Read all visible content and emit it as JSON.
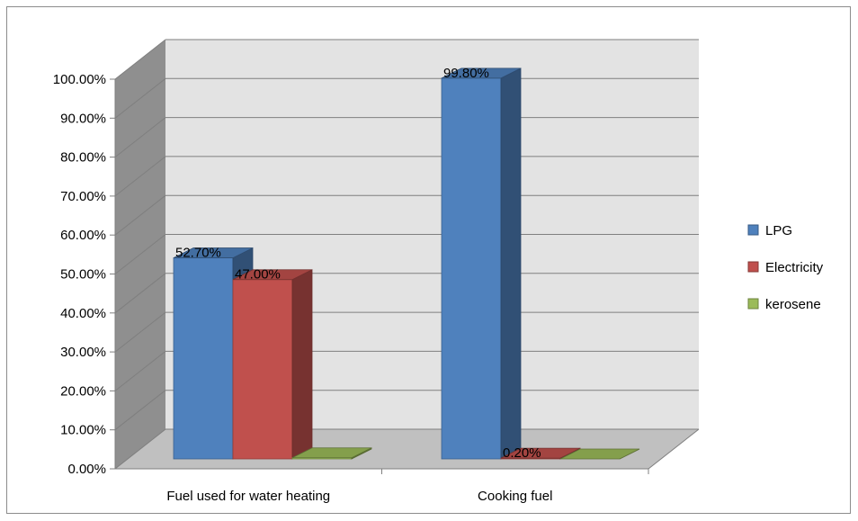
{
  "chart_data": {
    "type": "bar",
    "categories": [
      "Fuel used for water heating",
      "Cooking fuel"
    ],
    "series": [
      {
        "name": "LPG",
        "values": [
          52.7,
          99.8
        ],
        "labels": [
          "52.70%",
          "99.80%"
        ],
        "color": "#4f81bd"
      },
      {
        "name": "Electricity",
        "values": [
          47.0,
          0.2
        ],
        "labels": [
          "47.00%",
          "0.20%"
        ],
        "color": "#c0504d"
      },
      {
        "name": "kerosene",
        "values": [
          0.3,
          0
        ],
        "labels": [
          "",
          ""
        ],
        "color": "#9bbb59"
      }
    ],
    "yticks": [
      "0.00%",
      "10.00%",
      "20.00%",
      "30.00%",
      "40.00%",
      "50.00%",
      "60.00%",
      "70.00%",
      "80.00%",
      "90.00%",
      "100.00%"
    ],
    "ylim": [
      0,
      100
    ],
    "grid": true,
    "legend_position": "right",
    "title": "",
    "xlabel": "",
    "ylabel": ""
  }
}
